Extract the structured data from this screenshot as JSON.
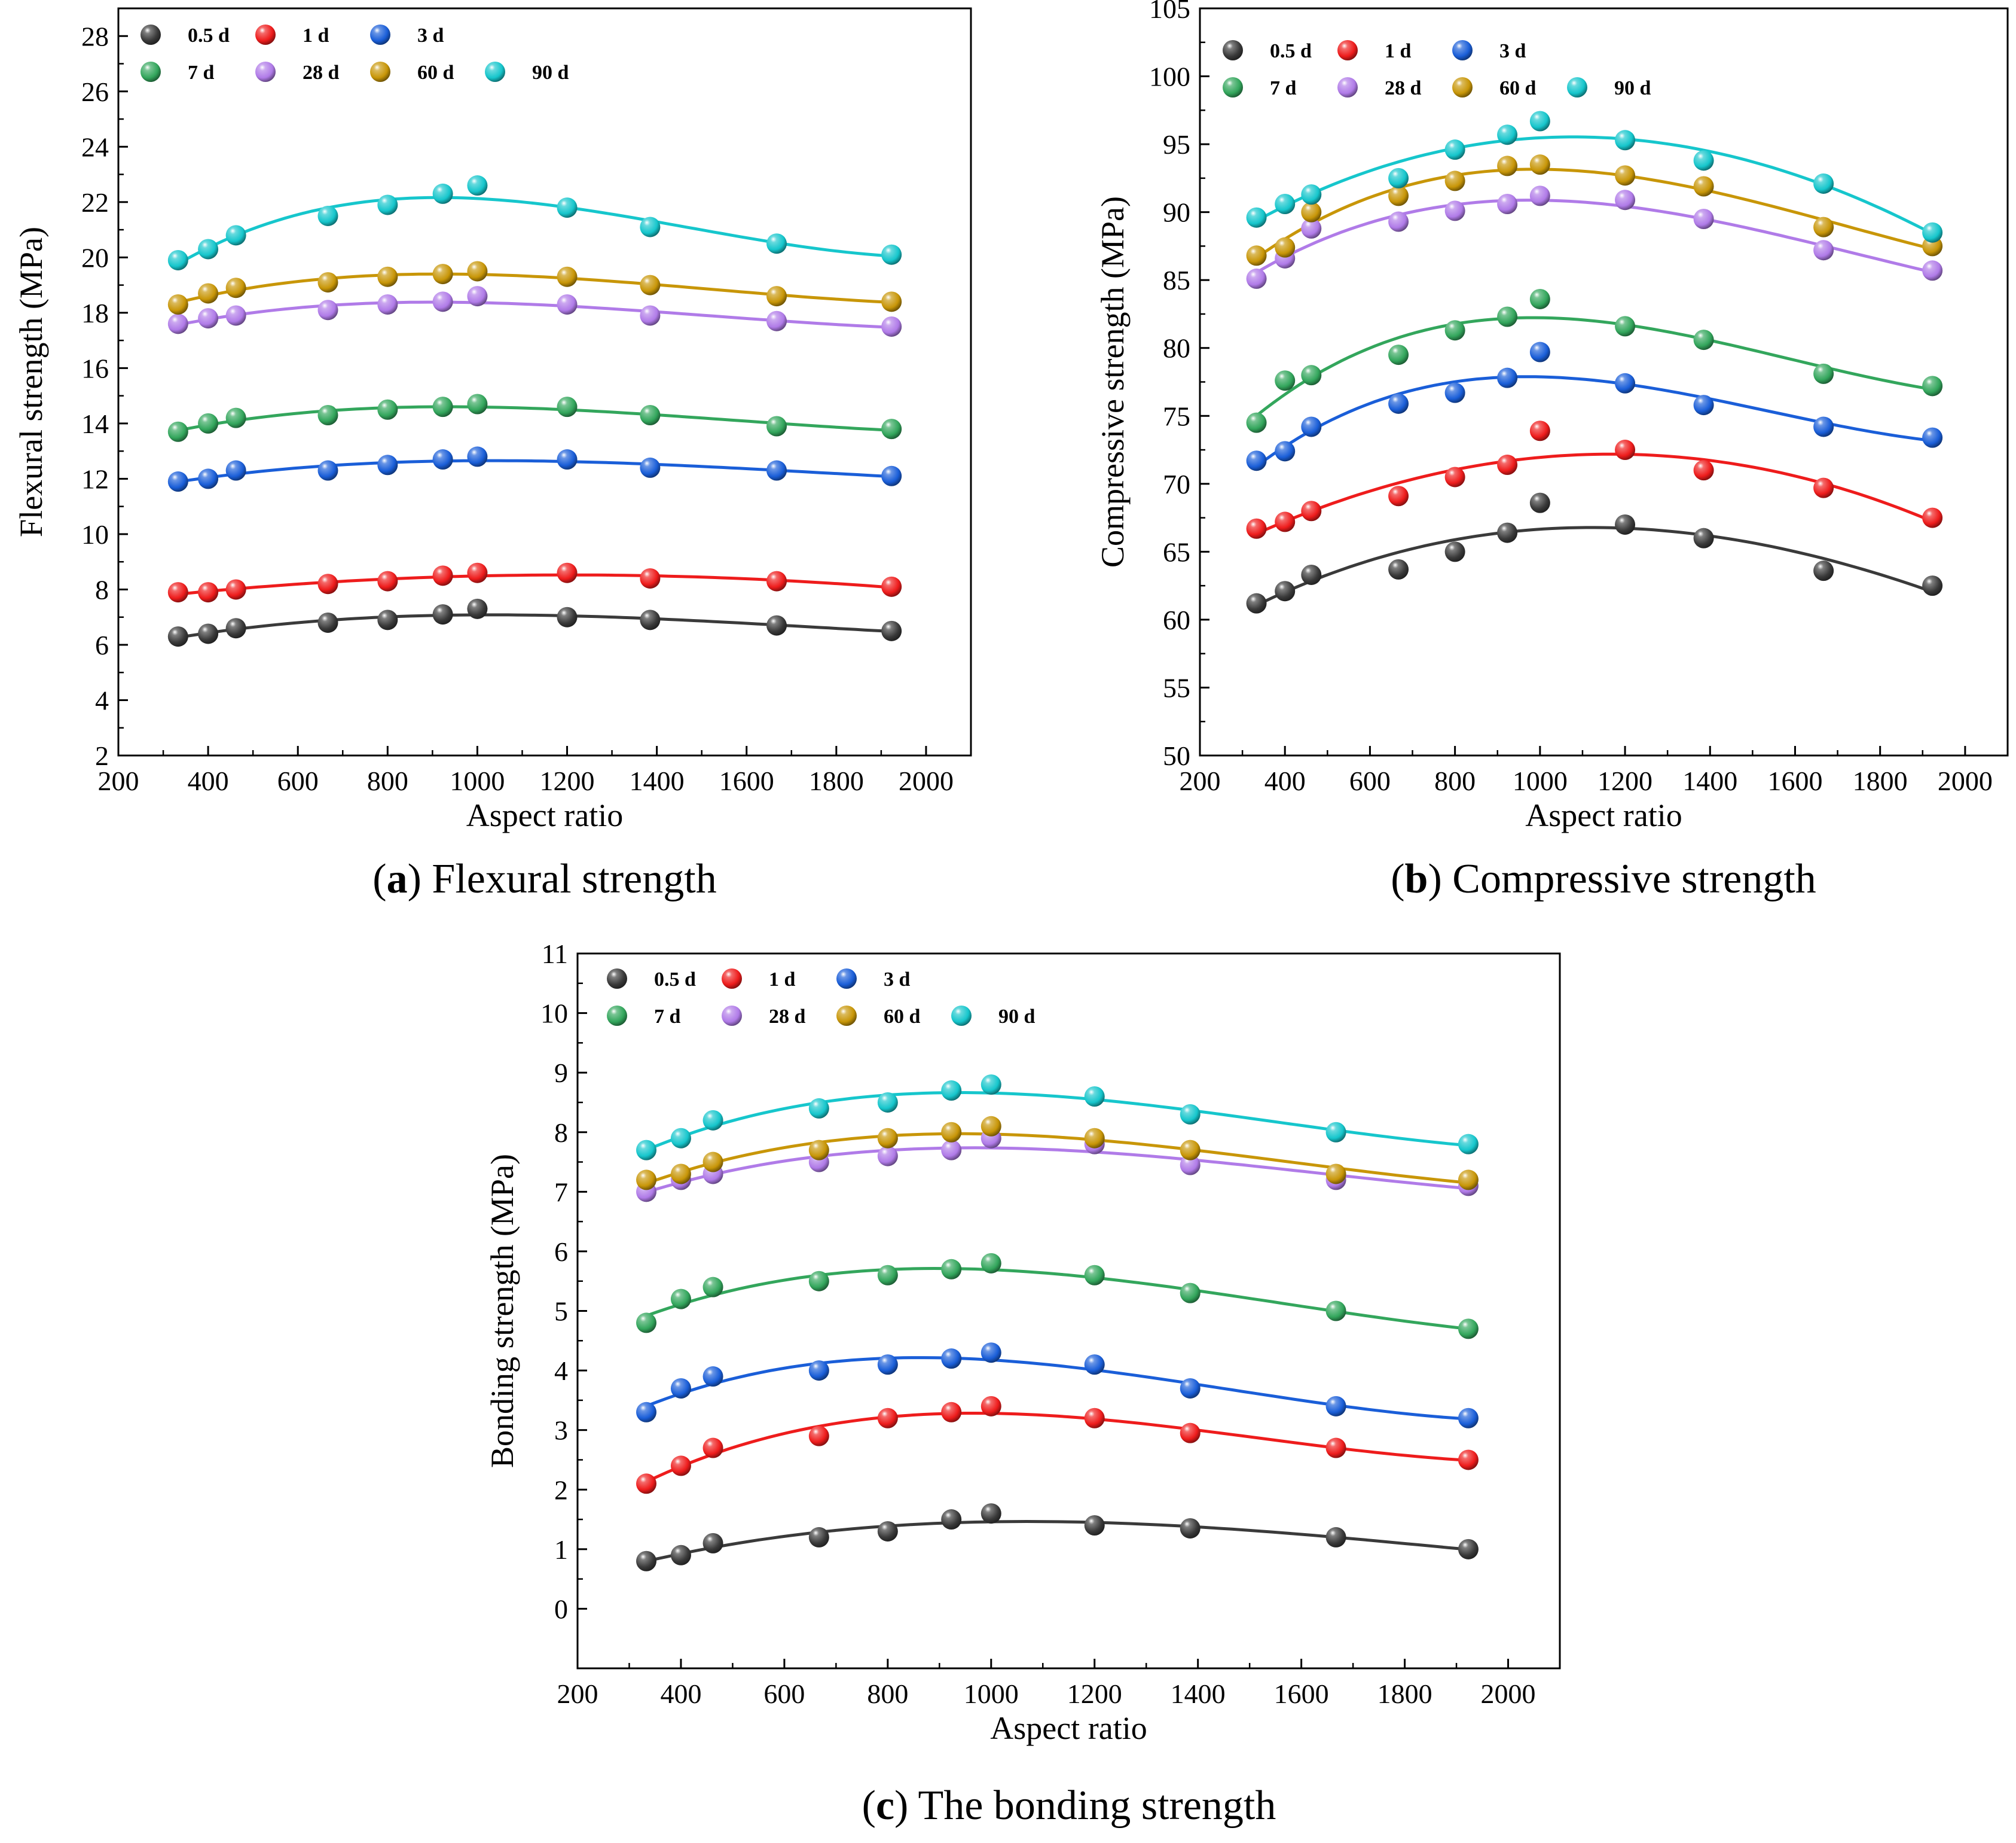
{
  "palette": {
    "0.5 d": "#3a3a3a",
    "1 d": "#ee1c1c",
    "3 d": "#1a5ed8",
    "7 d": "#33a65c",
    "28 d": "#b07be8",
    "60 d": "#c89608",
    "90 d": "#16c6cc"
  },
  "chart_data": [
    {
      "id": "a",
      "type": "scatter",
      "caption_letter": "a",
      "caption_text": "Flexural strength",
      "xlabel": "Aspect ratio",
      "ylabel": "Flexural strength (MPa)",
      "xlim": [
        200,
        2100
      ],
      "ylim": [
        2,
        29
      ],
      "xticks": [
        200,
        400,
        600,
        800,
        1000,
        1200,
        1400,
        1600,
        1800,
        2000
      ],
      "yticks": [
        2,
        4,
        6,
        8,
        10,
        12,
        14,
        16,
        18,
        20,
        22,
        24,
        26,
        28
      ],
      "fit_lines": true,
      "legend_position": "top-left",
      "x": [
        333,
        400,
        462,
        667,
        800,
        923,
        1000,
        1200,
        1385,
        1667,
        1923
      ],
      "series": [
        {
          "name": "0.5 d",
          "values": [
            6.3,
            6.4,
            6.6,
            6.8,
            6.9,
            7.1,
            7.3,
            7.0,
            6.9,
            6.7,
            6.5
          ]
        },
        {
          "name": "1 d",
          "values": [
            7.9,
            7.9,
            8.0,
            8.2,
            8.3,
            8.5,
            8.6,
            8.6,
            8.4,
            8.3,
            8.1
          ]
        },
        {
          "name": "3 d",
          "values": [
            11.9,
            12.0,
            12.3,
            12.3,
            12.5,
            12.7,
            12.8,
            12.7,
            12.4,
            12.3,
            12.1
          ]
        },
        {
          "name": "7 d",
          "values": [
            13.7,
            14.0,
            14.2,
            14.3,
            14.5,
            14.6,
            14.7,
            14.6,
            14.3,
            13.9,
            13.8
          ]
        },
        {
          "name": "28 d",
          "values": [
            17.6,
            17.8,
            17.9,
            18.1,
            18.3,
            18.4,
            18.6,
            18.3,
            17.9,
            17.7,
            17.5
          ]
        },
        {
          "name": "60 d",
          "values": [
            18.3,
            18.7,
            18.9,
            19.1,
            19.3,
            19.4,
            19.5,
            19.3,
            19.0,
            18.6,
            18.4
          ]
        },
        {
          "name": "90 d",
          "values": [
            19.9,
            20.3,
            20.8,
            21.5,
            21.9,
            22.3,
            22.6,
            21.8,
            21.1,
            20.5,
            20.1
          ]
        }
      ]
    },
    {
      "id": "b",
      "type": "scatter",
      "caption_letter": "b",
      "caption_text": "Compressive strength",
      "xlabel": "Aspect ratio",
      "ylabel": "Compressive strength (MPa)",
      "xlim": [
        200,
        2100
      ],
      "ylim": [
        50,
        105
      ],
      "xticks": [
        200,
        400,
        600,
        800,
        1000,
        1200,
        1400,
        1600,
        1800,
        2000
      ],
      "yticks": [
        50,
        55,
        60,
        65,
        70,
        75,
        80,
        85,
        90,
        95,
        100,
        105
      ],
      "fit_lines": true,
      "legend_position": "top-left",
      "x": [
        333,
        400,
        462,
        667,
        800,
        923,
        1000,
        1200,
        1385,
        1667,
        1923
      ],
      "series": [
        {
          "name": "0.5 d",
          "values": [
            61.2,
            62.1,
            63.3,
            63.7,
            65.0,
            66.4,
            68.6,
            67.0,
            66.0,
            63.6,
            62.5
          ]
        },
        {
          "name": "1 d",
          "values": [
            66.7,
            67.2,
            68.0,
            69.1,
            70.5,
            71.4,
            73.9,
            72.5,
            71.0,
            69.7,
            67.5
          ]
        },
        {
          "name": "3 d",
          "values": [
            71.7,
            72.4,
            74.2,
            75.9,
            76.7,
            77.8,
            79.7,
            77.4,
            75.8,
            74.2,
            73.4
          ]
        },
        {
          "name": "7 d",
          "values": [
            74.5,
            77.6,
            78.0,
            79.5,
            81.3,
            82.3,
            83.6,
            81.6,
            80.6,
            78.1,
            77.2
          ]
        },
        {
          "name": "28 d",
          "values": [
            85.1,
            86.6,
            88.8,
            89.3,
            90.1,
            90.6,
            91.2,
            90.9,
            89.5,
            87.2,
            85.7
          ]
        },
        {
          "name": "60 d",
          "values": [
            86.8,
            87.4,
            90.0,
            91.2,
            92.3,
            93.4,
            93.5,
            92.7,
            91.9,
            88.9,
            87.5
          ]
        },
        {
          "name": "90 d",
          "values": [
            89.6,
            90.6,
            91.3,
            92.5,
            94.6,
            95.7,
            96.7,
            95.3,
            93.8,
            92.1,
            88.5
          ]
        }
      ]
    },
    {
      "id": "c",
      "type": "scatter",
      "caption_letter": "c",
      "caption_text": "The bonding strength",
      "xlabel": "Aspect ratio",
      "ylabel": "Bonding strength (MPa)",
      "xlim": [
        200,
        2100
      ],
      "ylim": [
        -1,
        11
      ],
      "xticks": [
        200,
        400,
        600,
        800,
        1000,
        1200,
        1400,
        1600,
        1800,
        2000
      ],
      "yticks": [
        0,
        1,
        2,
        3,
        4,
        5,
        6,
        7,
        8,
        9,
        10,
        11
      ],
      "fit_lines": true,
      "legend_position": "top-left",
      "x": [
        333,
        400,
        462,
        667,
        800,
        923,
        1000,
        1200,
        1385,
        1667,
        1923
      ],
      "series": [
        {
          "name": "0.5 d",
          "values": [
            0.8,
            0.9,
            1.1,
            1.2,
            1.3,
            1.5,
            1.6,
            1.4,
            1.35,
            1.2,
            1.0
          ]
        },
        {
          "name": "1 d",
          "values": [
            2.1,
            2.4,
            2.7,
            2.9,
            3.2,
            3.3,
            3.4,
            3.2,
            2.95,
            2.7,
            2.5
          ]
        },
        {
          "name": "3 d",
          "values": [
            3.3,
            3.7,
            3.9,
            4.0,
            4.1,
            4.2,
            4.3,
            4.1,
            3.7,
            3.4,
            3.2
          ]
        },
        {
          "name": "7 d",
          "values": [
            4.8,
            5.2,
            5.4,
            5.5,
            5.6,
            5.7,
            5.8,
            5.6,
            5.3,
            5.0,
            4.7
          ]
        },
        {
          "name": "28 d",
          "values": [
            7.0,
            7.2,
            7.3,
            7.5,
            7.6,
            7.7,
            7.9,
            7.8,
            7.45,
            7.2,
            7.1
          ]
        },
        {
          "name": "60 d",
          "values": [
            7.2,
            7.3,
            7.5,
            7.7,
            7.9,
            8.0,
            8.1,
            7.9,
            7.7,
            7.3,
            7.2
          ]
        },
        {
          "name": "90 d",
          "values": [
            7.7,
            7.9,
            8.2,
            8.4,
            8.5,
            8.7,
            8.8,
            8.6,
            8.3,
            8.0,
            7.8
          ]
        }
      ]
    }
  ]
}
